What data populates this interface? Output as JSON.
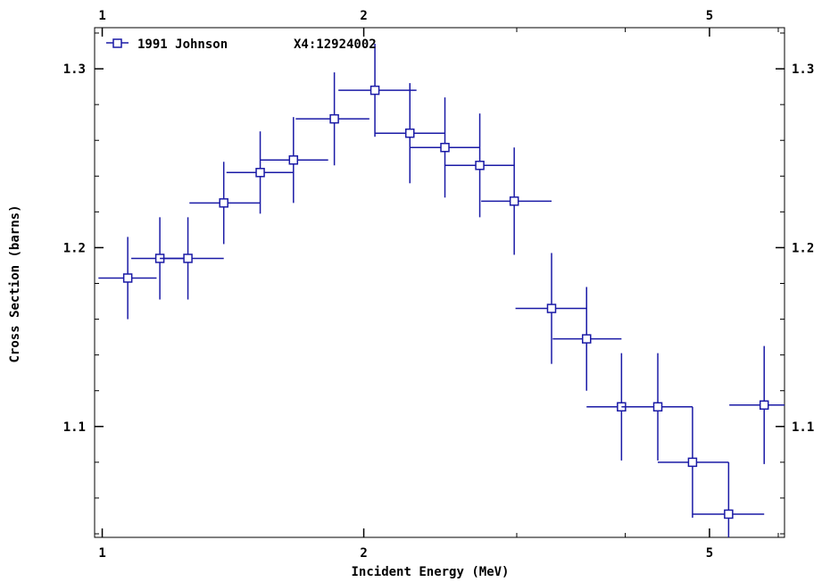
{
  "chart_data": {
    "type": "scatter",
    "xlabel": "Incident Energy (MeV)",
    "ylabel": "Cross Section (barns)",
    "x_scale": "log",
    "xlim": [
      0.98,
      6.1
    ],
    "ylim": [
      1.038,
      1.323
    ],
    "x_ticks": [
      {
        "value": 1,
        "label": "1"
      },
      {
        "value": 2,
        "label": "2"
      },
      {
        "value": 5,
        "label": "5"
      }
    ],
    "y_ticks": [
      {
        "value": 1.1,
        "label": "1.1"
      },
      {
        "value": 1.2,
        "label": "1.2"
      },
      {
        "value": 1.3,
        "label": "1.3"
      }
    ],
    "grid": false,
    "legend_position": "top-left",
    "series": [
      {
        "name": "1991 Johnson",
        "dataset_label": "X4:12924002",
        "color": "#1a1aa6",
        "marker": "open-square",
        "points": [
          {
            "x": 1.07,
            "y": 1.183,
            "xerr": [
              0.99,
              1.155
            ],
            "yerr": 0.023
          },
          {
            "x": 1.165,
            "y": 1.194,
            "xerr": [
              1.08,
              1.255
            ],
            "yerr": 0.023
          },
          {
            "x": 1.255,
            "y": 1.194,
            "xerr": [
              1.165,
              1.38
            ],
            "yerr": 0.023
          },
          {
            "x": 1.38,
            "y": 1.225,
            "xerr": [
              1.26,
              1.52
            ],
            "yerr": 0.023
          },
          {
            "x": 1.52,
            "y": 1.242,
            "xerr": [
              1.39,
              1.66
            ],
            "yerr": 0.023
          },
          {
            "x": 1.66,
            "y": 1.249,
            "xerr": [
              1.52,
              1.82
            ],
            "yerr": 0.024
          },
          {
            "x": 1.85,
            "y": 1.272,
            "xerr": [
              1.67,
              2.03
            ],
            "yerr": 0.026
          },
          {
            "x": 2.06,
            "y": 1.288,
            "xerr": [
              1.87,
              2.3
            ],
            "yerr": 0.026
          },
          {
            "x": 2.26,
            "y": 1.264,
            "xerr": [
              2.06,
              2.48
            ],
            "yerr": 0.028
          },
          {
            "x": 2.48,
            "y": 1.256,
            "xerr": [
              2.26,
              2.72
            ],
            "yerr": 0.028
          },
          {
            "x": 2.72,
            "y": 1.246,
            "xerr": [
              2.48,
              2.98
            ],
            "yerr": 0.029
          },
          {
            "x": 2.98,
            "y": 1.226,
            "xerr": [
              2.73,
              3.29
            ],
            "yerr": 0.03
          },
          {
            "x": 3.29,
            "y": 1.166,
            "xerr": [
              2.99,
              3.61
            ],
            "yerr": 0.031
          },
          {
            "x": 3.61,
            "y": 1.149,
            "xerr": [
              3.3,
              3.96
            ],
            "yerr": 0.029
          },
          {
            "x": 3.96,
            "y": 1.111,
            "xerr": [
              3.61,
              4.36
            ],
            "yerr": 0.03
          },
          {
            "x": 4.36,
            "y": 1.111,
            "xerr": [
              3.96,
              4.78
            ],
            "yerr": 0.03
          },
          {
            "x": 4.78,
            "y": 1.08,
            "xerr": [
              4.36,
              5.26
            ],
            "yerr": 0.031
          },
          {
            "x": 5.26,
            "y": 1.051,
            "xerr": [
              4.78,
              5.78
            ],
            "yerr": 0.029
          },
          {
            "x": 5.78,
            "y": 1.112,
            "xerr": [
              5.27,
              6.1
            ],
            "yerr": 0.033
          }
        ]
      }
    ]
  }
}
